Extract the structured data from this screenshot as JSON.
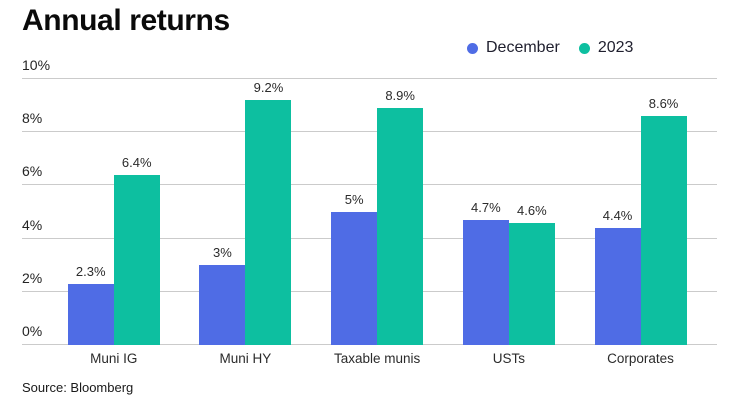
{
  "title": "Annual returns",
  "source": "Source: Bloomberg",
  "colors": {
    "december_blue": "#4f6ce5",
    "year2023_teal": "#0dbfa0",
    "gridline": "#cbcbcb",
    "label_text": "#2b2b2b"
  },
  "chart_data": {
    "type": "bar",
    "title": "Annual returns",
    "categories": [
      "Muni IG",
      "Muni HY",
      "Taxable munis",
      "USTs",
      "Corporates"
    ],
    "series": [
      {
        "name": "December",
        "color": "#4f6ce5",
        "values": [
          2.3,
          3,
          5,
          4.7,
          4.4
        ],
        "labels": [
          "2.3%",
          "3%",
          "5%",
          "4.7%",
          "4.4%"
        ]
      },
      {
        "name": "2023",
        "color": "#0dbfa0",
        "values": [
          6.4,
          9.2,
          8.9,
          4.6,
          8.6
        ],
        "labels": [
          "6.4%",
          "9.2%",
          "8.9%",
          "4.6%",
          "8.6%"
        ]
      }
    ],
    "yaxis": {
      "ylim": [
        0,
        10
      ],
      "grid": true,
      "ticks": [
        {
          "value": 0,
          "label": "0%"
        },
        {
          "value": 2,
          "label": "2%"
        },
        {
          "value": 4,
          "label": "4%"
        },
        {
          "value": 6,
          "label": "6%"
        },
        {
          "value": 8,
          "label": "8%"
        },
        {
          "value": 10,
          "label": "10%"
        }
      ]
    },
    "legend_position": "top-right",
    "xlabel": "",
    "ylabel": "",
    "source": "Source: Bloomberg"
  }
}
